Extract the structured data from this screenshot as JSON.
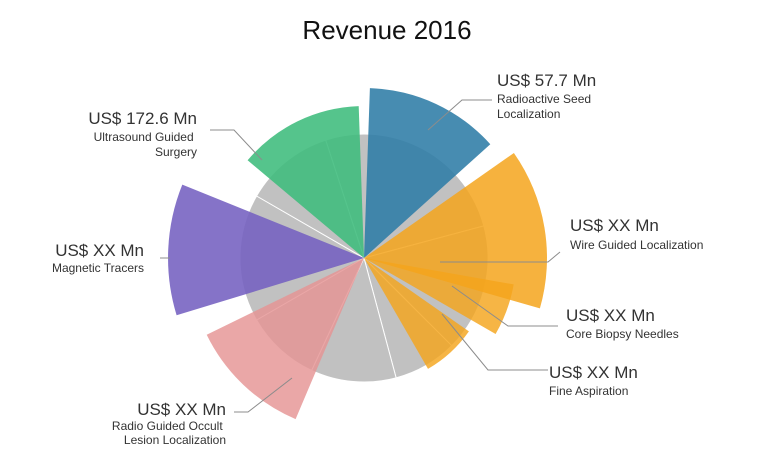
{
  "chart_data": {
    "type": "pie",
    "title": "Revenue 2016",
    "colors": {
      "seed": "#2e7ca6",
      "wire": "#f4a51c",
      "core": "#f4a51c",
      "fine": "#f4a51c",
      "radio": "#e59494",
      "magnetic": "#7460c0",
      "ultrasound": "#3dbc7c",
      "grey": "#b7b7b7"
    },
    "slices": [
      {
        "key": "seed",
        "value_label": "US$ 57.7 Mn",
        "label_lines": [
          "Radioactive Seed",
          "Localization"
        ]
      },
      {
        "key": "wire",
        "value_label": "US$ XX Mn",
        "label_lines": [
          "Wire Guided Localization"
        ]
      },
      {
        "key": "core",
        "value_label": "US$ XX Mn",
        "label_lines": [
          "Core Biopsy Needles"
        ]
      },
      {
        "key": "fine",
        "value_label": "US$ XX Mn",
        "label_lines": [
          "Fine Aspiration"
        ]
      },
      {
        "key": "radio",
        "value_label": "US$ XX Mn",
        "label_lines": [
          "Radio Guided Occult",
          "Lesion Localization"
        ]
      },
      {
        "key": "magnetic",
        "value_label": "US$ XX Mn",
        "label_lines": [
          "Magnetic Tracers"
        ]
      },
      {
        "key": "ultrasound",
        "value_label": "US$ 172.6 Mn",
        "label_lines": [
          "Ultrasound Guided",
          "Surgery"
        ]
      }
    ]
  }
}
